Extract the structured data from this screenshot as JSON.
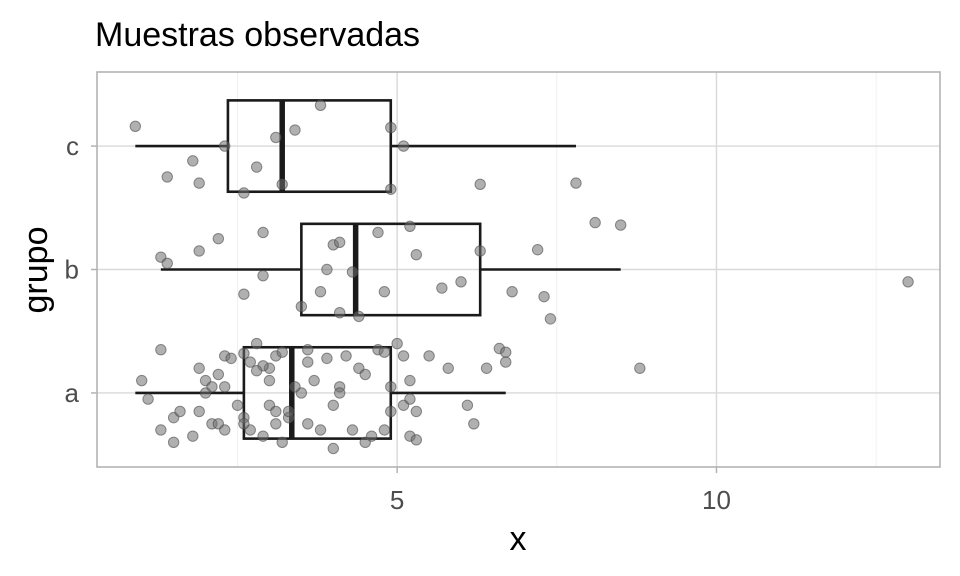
{
  "chart_data": {
    "type": "boxplot",
    "orientation": "horizontal",
    "title": "Muestras observadas",
    "xlabel": "x",
    "ylabel": "grupo",
    "xlim": [
      0.3,
      13.5
    ],
    "x_ticks": [
      5,
      10
    ],
    "x_tick_labels": [
      "5",
      "10"
    ],
    "categories": [
      "a",
      "b",
      "c"
    ],
    "grid": true,
    "boxes": [
      {
        "category": "a",
        "whisker_low": 0.9,
        "q1": 2.6,
        "median": 3.35,
        "q3": 4.9,
        "whisker_high": 6.7
      },
      {
        "category": "b",
        "whisker_low": 1.3,
        "q1": 3.5,
        "median": 4.35,
        "q3": 6.3,
        "whisker_high": 8.5
      },
      {
        "category": "c",
        "whisker_low": 0.9,
        "q1": 2.35,
        "median": 3.2,
        "q3": 4.9,
        "whisker_high": 7.8
      }
    ],
    "points": {
      "a": [
        [
          1.0,
          0.1
        ],
        [
          1.1,
          -0.05
        ],
        [
          1.3,
          0.35
        ],
        [
          1.5,
          -0.2
        ],
        [
          1.3,
          -0.3
        ],
        [
          1.5,
          -0.4
        ],
        [
          1.6,
          -0.15
        ],
        [
          1.8,
          -0.35
        ],
        [
          1.9,
          -0.15
        ],
        [
          2.0,
          0.1
        ],
        [
          2.1,
          -0.25
        ],
        [
          2.2,
          -0.25
        ],
        [
          2.3,
          0.3
        ],
        [
          2.3,
          0.05
        ],
        [
          2.1,
          0.05
        ],
        [
          2.2,
          0.15
        ],
        [
          2.4,
          0.28
        ],
        [
          2.6,
          -0.2
        ],
        [
          2.7,
          -0.3
        ],
        [
          2.7,
          0.25
        ],
        [
          2.8,
          0.4
        ],
        [
          2.9,
          -0.35
        ],
        [
          3.0,
          -0.1
        ],
        [
          3.0,
          0.2
        ],
        [
          3.2,
          -0.4
        ],
        [
          3.3,
          -0.2
        ],
        [
          3.1,
          0.3
        ],
        [
          3.2,
          0.33
        ],
        [
          3.3,
          -0.15
        ],
        [
          3.5,
          0.0
        ],
        [
          3.6,
          0.35
        ],
        [
          3.6,
          0.25
        ],
        [
          3.7,
          0.1
        ],
        [
          3.8,
          -0.3
        ],
        [
          3.9,
          0.28
        ],
        [
          4.0,
          -0.45
        ],
        [
          4.1,
          0.05
        ],
        [
          4.2,
          0.3
        ],
        [
          4.3,
          -0.3
        ],
        [
          4.4,
          0.2
        ],
        [
          4.5,
          0.15
        ],
        [
          4.6,
          -0.35
        ],
        [
          4.7,
          0.35
        ],
        [
          4.8,
          0.33
        ],
        [
          4.9,
          -0.15
        ],
        [
          5.0,
          0.4
        ],
        [
          5.1,
          0.3
        ],
        [
          5.1,
          -0.1
        ],
        [
          5.2,
          -0.05
        ],
        [
          5.2,
          0.1
        ],
        [
          5.3,
          -0.15
        ],
        [
          5.2,
          -0.35
        ],
        [
          5.3,
          -0.38
        ],
        [
          5.5,
          0.3
        ],
        [
          5.8,
          0.2
        ],
        [
          6.1,
          -0.1
        ],
        [
          6.2,
          -0.25
        ],
        [
          6.4,
          0.2
        ],
        [
          6.6,
          0.36
        ],
        [
          6.7,
          0.33
        ],
        [
          6.7,
          0.25
        ],
        [
          8.8,
          0.2
        ],
        [
          2.6,
          0.32
        ],
        [
          2.9,
          0.22
        ],
        [
          4.0,
          -0.1
        ],
        [
          3.4,
          0.05
        ],
        [
          2.5,
          -0.1
        ],
        [
          2.0,
          0.0
        ],
        [
          4.1,
          0.0
        ],
        [
          3.0,
          0.1
        ],
        [
          2.3,
          -0.3
        ],
        [
          4.5,
          -0.4
        ],
        [
          3.1,
          -0.15
        ],
        [
          2.8,
          0.18
        ],
        [
          4.9,
          0.05
        ],
        [
          1.9,
          0.2
        ],
        [
          3.6,
          -0.25
        ],
        [
          2.6,
          -0.25
        ],
        [
          4.8,
          -0.3
        ],
        [
          3.1,
          -0.25
        ]
      ],
      "b": [
        [
          1.3,
          0.1
        ],
        [
          1.4,
          0.05
        ],
        [
          1.9,
          0.15
        ],
        [
          2.2,
          0.25
        ],
        [
          2.6,
          -0.2
        ],
        [
          2.9,
          0.3
        ],
        [
          2.9,
          -0.05
        ],
        [
          3.5,
          -0.3
        ],
        [
          3.8,
          -0.18
        ],
        [
          3.9,
          0.0
        ],
        [
          4.0,
          0.2
        ],
        [
          4.1,
          -0.35
        ],
        [
          4.1,
          0.22
        ],
        [
          4.3,
          -0.02
        ],
        [
          4.4,
          -0.38
        ],
        [
          4.7,
          0.3
        ],
        [
          4.8,
          -0.18
        ],
        [
          5.2,
          0.35
        ],
        [
          5.3,
          0.12
        ],
        [
          5.7,
          -0.15
        ],
        [
          6.0,
          -0.1
        ],
        [
          6.3,
          0.15
        ],
        [
          6.8,
          -0.18
        ],
        [
          7.2,
          0.16
        ],
        [
          7.3,
          -0.22
        ],
        [
          7.4,
          -0.4
        ],
        [
          8.1,
          0.38
        ],
        [
          8.5,
          0.36
        ],
        [
          13.0,
          -0.1
        ]
      ],
      "c": [
        [
          0.9,
          0.16
        ],
        [
          1.4,
          -0.25
        ],
        [
          1.8,
          -0.12
        ],
        [
          1.9,
          -0.3
        ],
        [
          2.3,
          0.0
        ],
        [
          2.6,
          -0.38
        ],
        [
          2.8,
          -0.17
        ],
        [
          3.1,
          0.07
        ],
        [
          3.2,
          -0.31
        ],
        [
          3.4,
          0.13
        ],
        [
          3.8,
          0.33
        ],
        [
          4.9,
          0.15
        ],
        [
          4.9,
          -0.35
        ],
        [
          5.1,
          0.0
        ],
        [
          6.3,
          -0.31
        ],
        [
          7.8,
          -0.3
        ]
      ]
    }
  }
}
